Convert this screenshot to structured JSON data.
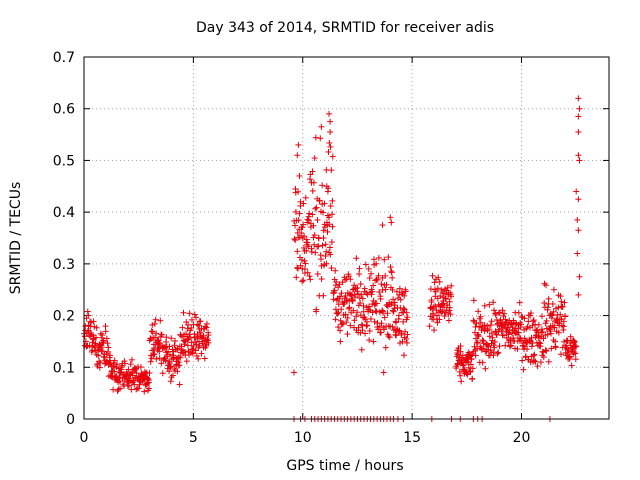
{
  "chart_data": {
    "type": "scatter",
    "title": "Day 343 of 2014, SRMTID for receiver adis",
    "xlabel": "GPS time / hours",
    "ylabel": "SRMTID / TECUs",
    "xlim": [
      0,
      24
    ],
    "ylim": [
      0,
      0.7
    ],
    "xticks": [
      0,
      5,
      10,
      15,
      20
    ],
    "xtick_labels": [
      "0",
      "5",
      "10",
      "15",
      "20"
    ],
    "yticks": [
      0,
      0.1,
      0.2,
      0.3,
      0.4,
      0.5,
      0.6,
      0.7
    ],
    "ytick_labels": [
      "0",
      "0.1",
      "0.2",
      "0.3",
      "0.4",
      "0.5",
      "0.6",
      "0.7"
    ],
    "grid": true,
    "marker": "plus",
    "marker_color": "#e8000b",
    "series": [
      {
        "name": "SRMTID",
        "segments": [
          {
            "x_start": 0.0,
            "x_end": 0.5,
            "y_range": [
              0.1,
              0.24
            ]
          },
          {
            "x_start": 0.5,
            "x_end": 1.2,
            "y_range": [
              0.07,
              0.19
            ]
          },
          {
            "x_start": 1.2,
            "x_end": 2.2,
            "y_range": [
              0.04,
              0.13
            ]
          },
          {
            "x_start": 2.2,
            "x_end": 3.0,
            "y_range": [
              0.04,
              0.12
            ]
          },
          {
            "x_start": 3.0,
            "x_end": 3.6,
            "y_range": [
              0.08,
              0.21
            ]
          },
          {
            "x_start": 3.6,
            "x_end": 4.4,
            "y_range": [
              0.06,
              0.18
            ]
          },
          {
            "x_start": 4.4,
            "x_end": 5.0,
            "y_range": [
              0.08,
              0.22
            ]
          },
          {
            "x_start": 5.0,
            "x_end": 5.7,
            "y_range": [
              0.1,
              0.23
            ]
          },
          {
            "x_start": 9.6,
            "x_end": 10.3,
            "y_range": [
              0.15,
              0.54
            ]
          },
          {
            "x_start": 10.3,
            "x_end": 11.4,
            "y_range": [
              0.15,
              0.59
            ]
          },
          {
            "x_start": 11.4,
            "x_end": 12.4,
            "y_range": [
              0.12,
              0.33
            ]
          },
          {
            "x_start": 12.4,
            "x_end": 13.4,
            "y_range": [
              0.12,
              0.34
            ]
          },
          {
            "x_start": 13.4,
            "x_end": 14.1,
            "y_range": [
              0.09,
              0.39
            ]
          },
          {
            "x_start": 14.1,
            "x_end": 14.8,
            "y_range": [
              0.1,
              0.3
            ]
          },
          {
            "x_start": 15.8,
            "x_end": 16.8,
            "y_range": [
              0.15,
              0.3
            ]
          },
          {
            "x_start": 17.0,
            "x_end": 17.8,
            "y_range": [
              0.06,
              0.15
            ]
          },
          {
            "x_start": 17.8,
            "x_end": 18.8,
            "y_range": [
              0.08,
              0.24
            ]
          },
          {
            "x_start": 18.8,
            "x_end": 20.0,
            "y_range": [
              0.1,
              0.24
            ]
          },
          {
            "x_start": 20.0,
            "x_end": 21.0,
            "y_range": [
              0.08,
              0.23
            ]
          },
          {
            "x_start": 21.0,
            "x_end": 22.0,
            "y_range": [
              0.08,
              0.29
            ]
          },
          {
            "x_start": 22.0,
            "x_end": 22.5,
            "y_range": [
              0.09,
              0.18
            ]
          }
        ],
        "outliers": [
          {
            "x": 9.6,
            "y": 0.09
          },
          {
            "x": 9.75,
            "y": 0.51
          },
          {
            "x": 9.8,
            "y": 0.53
          },
          {
            "x": 9.85,
            "y": 0.47
          },
          {
            "x": 9.9,
            "y": 0.42
          },
          {
            "x": 10.0,
            "y": 0.35
          },
          {
            "x": 10.1,
            "y": 0.29
          },
          {
            "x": 10.2,
            "y": 0.38
          },
          {
            "x": 10.85,
            "y": 0.565
          },
          {
            "x": 11.2,
            "y": 0.59
          },
          {
            "x": 11.25,
            "y": 0.575
          },
          {
            "x": 11.25,
            "y": 0.555
          },
          {
            "x": 11.1,
            "y": 0.45
          },
          {
            "x": 11.15,
            "y": 0.44
          },
          {
            "x": 11.2,
            "y": 0.39
          },
          {
            "x": 10.95,
            "y": 0.35
          },
          {
            "x": 13.65,
            "y": 0.375
          },
          {
            "x": 14.0,
            "y": 0.39
          },
          {
            "x": 14.05,
            "y": 0.38
          },
          {
            "x": 13.7,
            "y": 0.09
          },
          {
            "x": 22.6,
            "y": 0.62
          },
          {
            "x": 22.65,
            "y": 0.6
          },
          {
            "x": 22.6,
            "y": 0.585
          },
          {
            "x": 22.6,
            "y": 0.555
          },
          {
            "x": 22.6,
            "y": 0.51
          },
          {
            "x": 22.65,
            "y": 0.5
          },
          {
            "x": 22.5,
            "y": 0.44
          },
          {
            "x": 22.6,
            "y": 0.425
          },
          {
            "x": 22.55,
            "y": 0.385
          },
          {
            "x": 22.6,
            "y": 0.365
          },
          {
            "x": 22.55,
            "y": 0.32
          },
          {
            "x": 22.65,
            "y": 0.275
          },
          {
            "x": 22.6,
            "y": 0.24
          }
        ],
        "zero_points_x": [
          9.6,
          9.9,
          10.1,
          10.4,
          10.55,
          10.7,
          10.85,
          11.0,
          11.15,
          11.3,
          11.45,
          11.6,
          11.75,
          11.9,
          12.05,
          12.2,
          12.35,
          12.5,
          12.65,
          12.8,
          12.95,
          13.1,
          13.25,
          13.4,
          13.55,
          13.7,
          13.85,
          14.0,
          14.15,
          14.35,
          14.6,
          15.9,
          16.8,
          17.2,
          17.8,
          18.0,
          18.2,
          21.3
        ]
      }
    ]
  }
}
